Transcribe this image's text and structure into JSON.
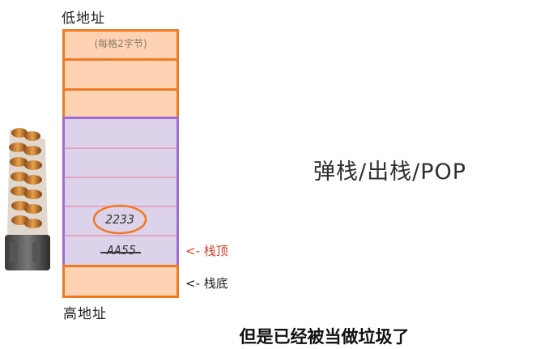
{
  "labels": {
    "low_address": "低地址",
    "high_address": "高地址",
    "cell_note": "(每格2字节)"
  },
  "stack": {
    "rows": [
      {
        "text": ""
      },
      {
        "text": ""
      },
      {
        "text": ""
      },
      {
        "text": ""
      },
      {
        "text": ""
      },
      {
        "text": ""
      },
      {
        "text": "2233"
      },
      {
        "text": "AA55"
      },
      {
        "text": ""
      }
    ],
    "popped_value": "2233",
    "top_value": "AA55",
    "colors": {
      "fill": "#fdd3b3",
      "border": "#f07a22",
      "popped_region": "#dcd3ea",
      "popped_border": "#a06cd5",
      "circle": "#f07a22"
    }
  },
  "annotations": {
    "stack_top": "<- 栈顶",
    "stack_bottom": "<- 栈底"
  },
  "operation_title": "弹栈/出栈/POP",
  "subtitle": "但是已经被当做垃圾了",
  "icons": [
    "ammo-magazine-icon"
  ]
}
